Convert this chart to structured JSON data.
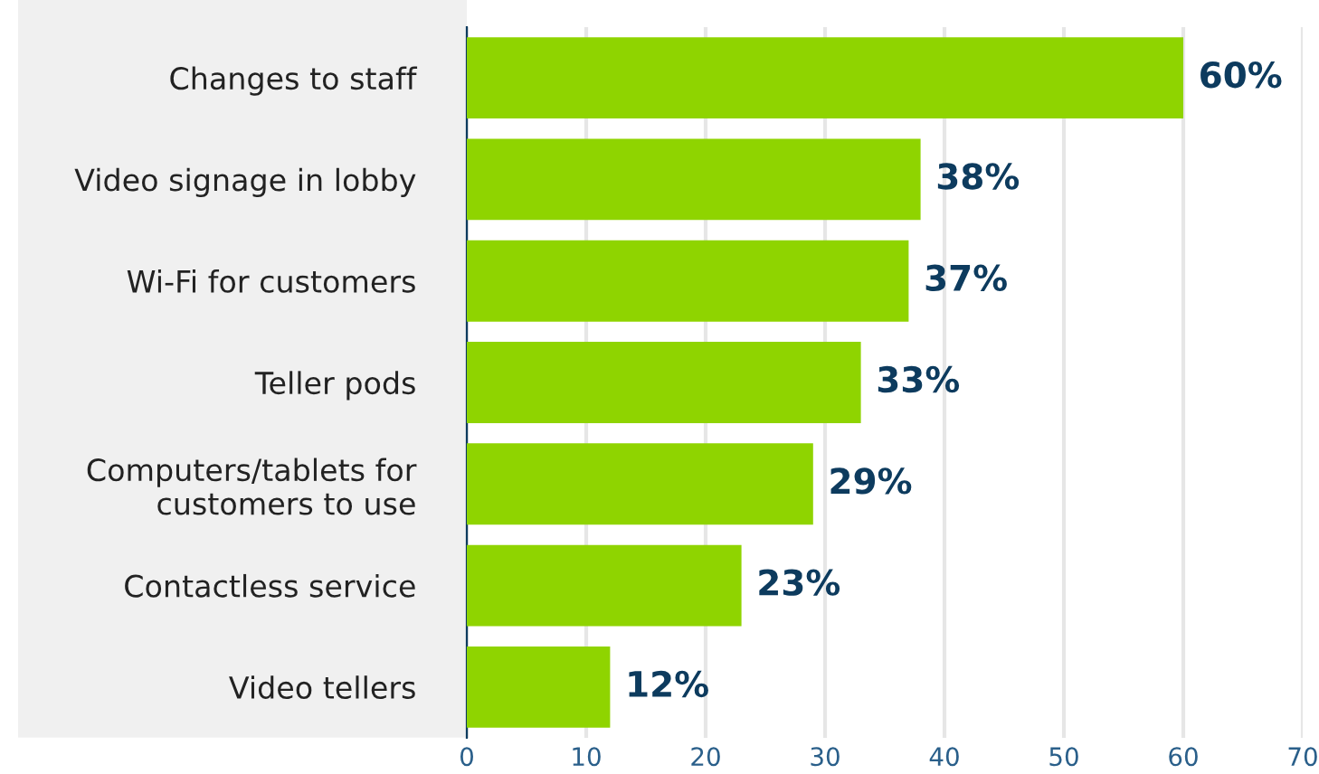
{
  "chart_data": {
    "type": "bar",
    "orientation": "horizontal",
    "categories": [
      "Changes to staff",
      "Video signage in lobby",
      "Wi-Fi for customers",
      "Teller pods",
      "Computers/tablets for\ncustomers to use",
      "Contactless service",
      "Video tellers"
    ],
    "values": [
      60,
      38,
      37,
      33,
      29,
      23,
      12
    ],
    "value_labels": [
      "60%",
      "38%",
      "37%",
      "33%",
      "29%",
      "23%",
      "12%"
    ],
    "color": "#8fd400",
    "xlim": [
      0,
      70
    ],
    "xticks": [
      0,
      10,
      20,
      30,
      40,
      50,
      60,
      70
    ],
    "grid": "x",
    "legend": false
  }
}
